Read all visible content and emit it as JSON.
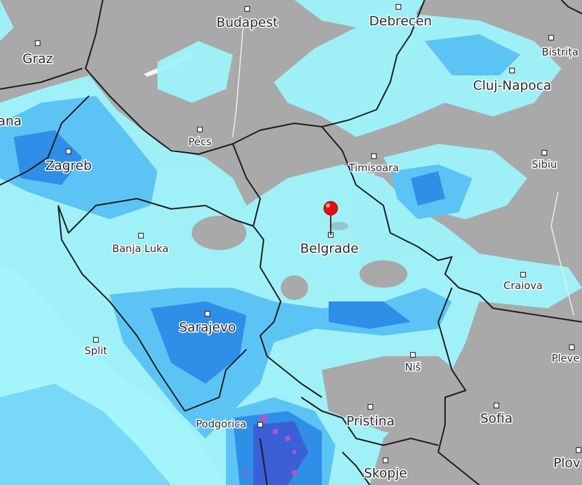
{
  "map": {
    "layer": "precipitation radar",
    "colors": {
      "land": "#a9a9a9",
      "sea": "#f4f4f4",
      "rain_light": "#9ff3fb",
      "rain_moderate": "#5cc4f5",
      "rain_heavy": "#2f8ee8",
      "rain_very_heavy": "#3a5fd6",
      "rain_extreme": "#c04fc4",
      "border": "#1a1a1a",
      "pin": "#e01010"
    },
    "selected_location": "Belgrade",
    "cities": [
      {
        "name": "Budapest",
        "size": "big"
      },
      {
        "name": "Debrecen",
        "size": "big"
      },
      {
        "name": "Graz",
        "size": "big"
      },
      {
        "name": "Bistrița",
        "size": "med"
      },
      {
        "name": "Cluj-Napoca",
        "size": "big"
      },
      {
        "name": "ana",
        "size": "big"
      },
      {
        "name": "Pécs",
        "size": "med"
      },
      {
        "name": "Zagreb",
        "size": "big"
      },
      {
        "name": "Timișoara",
        "size": "med"
      },
      {
        "name": "Sibiu",
        "size": "med"
      },
      {
        "name": "Banja Luka",
        "size": "med"
      },
      {
        "name": "Belgrade",
        "size": "big"
      },
      {
        "name": "Craiova",
        "size": "med"
      },
      {
        "name": "Sarajevo",
        "size": "big"
      },
      {
        "name": "Split",
        "size": "med"
      },
      {
        "name": "Niš",
        "size": "med"
      },
      {
        "name": "Pleve",
        "size": "med"
      },
      {
        "name": "Podgorica",
        "size": "med"
      },
      {
        "name": "Pristina",
        "size": "big"
      },
      {
        "name": "Sofia",
        "size": "big"
      },
      {
        "name": "Skopje",
        "size": "big"
      },
      {
        "name": "Plov",
        "size": "big"
      }
    ]
  }
}
